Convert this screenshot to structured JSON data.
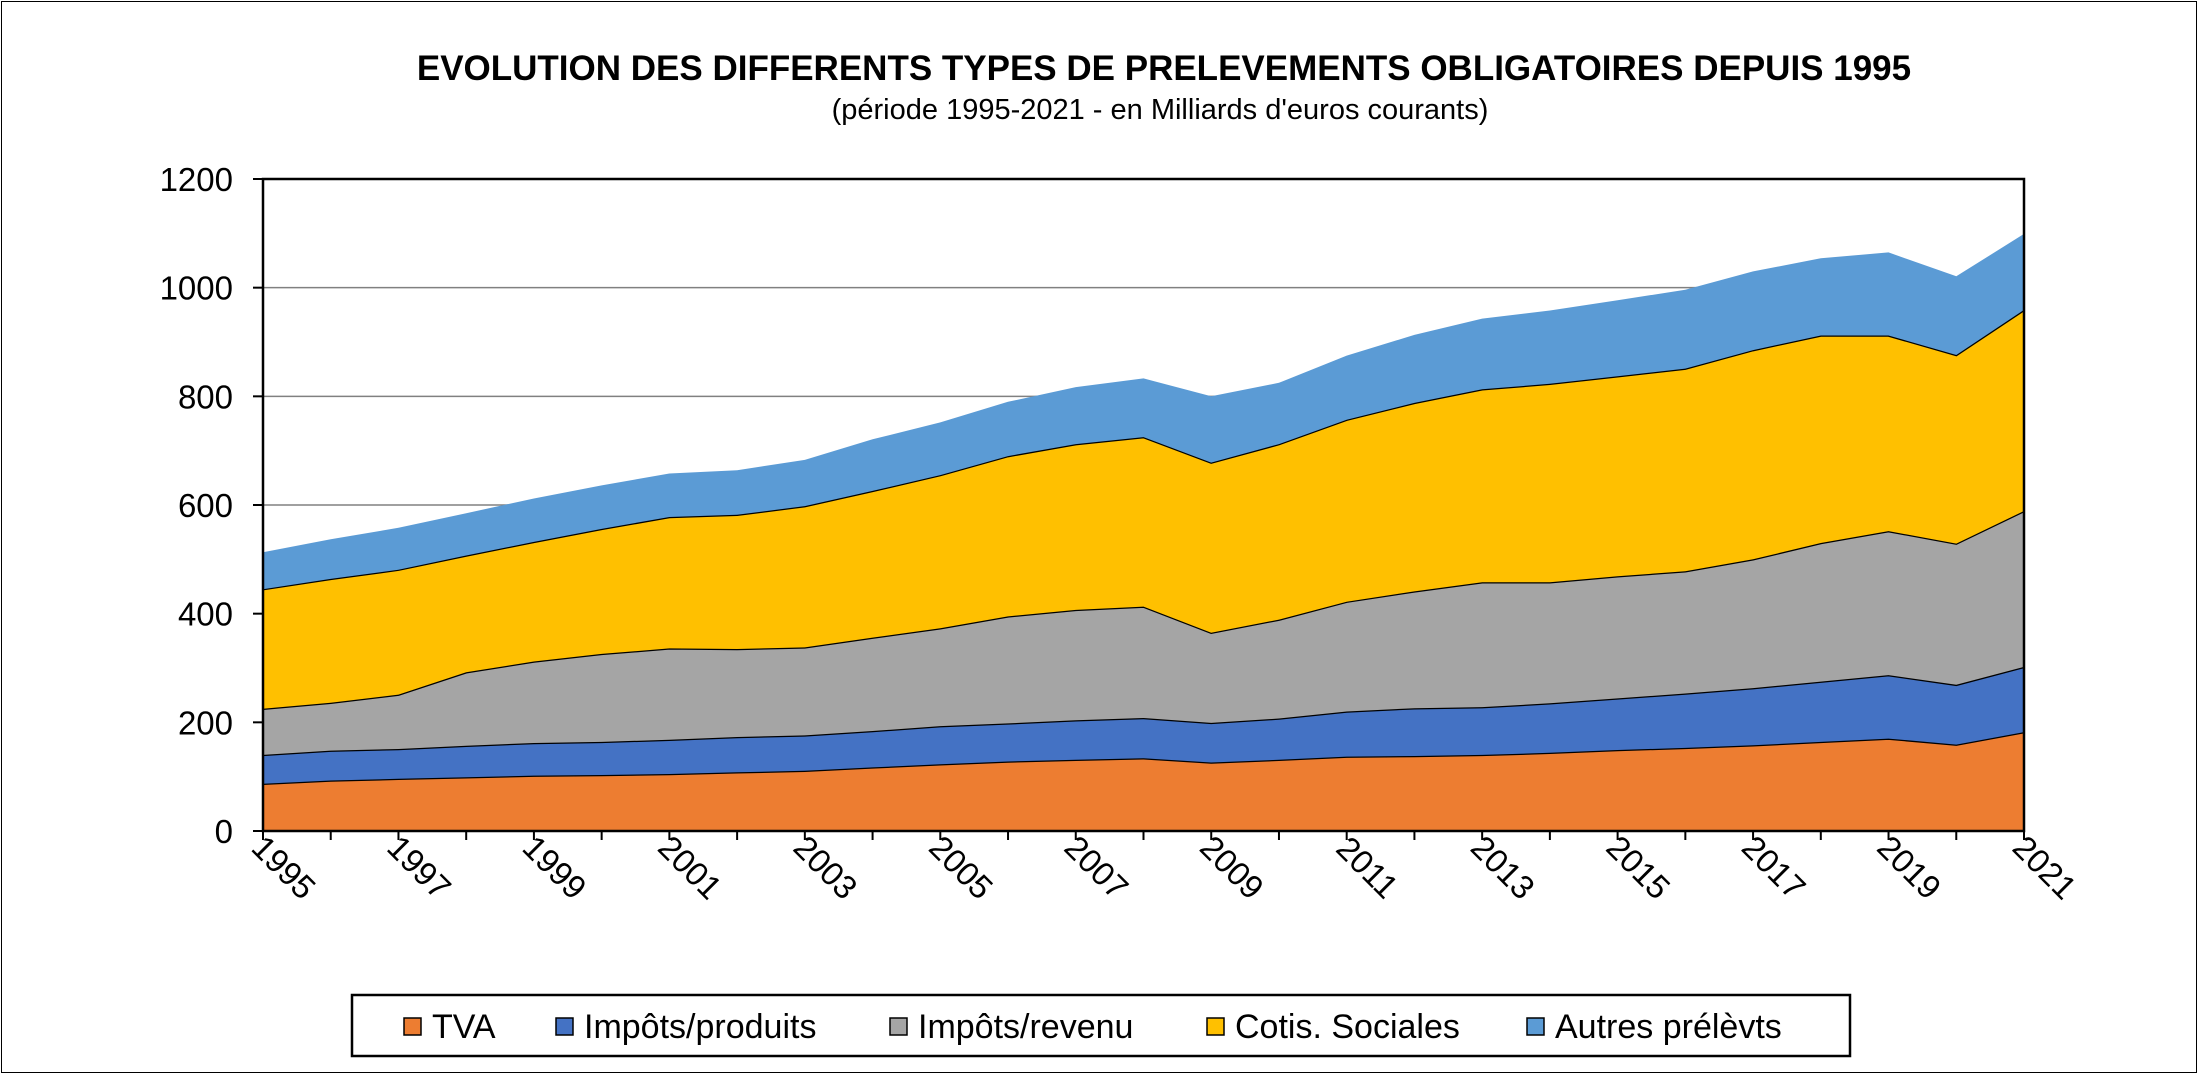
{
  "chart_data": {
    "type": "area",
    "stacked": true,
    "title": "EVOLUTION DES DIFFERENTS TYPES DE PRELEVEMENTS OBLIGATOIRES DEPUIS 1995",
    "subtitle": "(période 1995-2021 - en Milliards d'euros courants)",
    "xlabel": "",
    "ylabel": "",
    "ylim": [
      0,
      1200
    ],
    "yticks": [
      0,
      200,
      400,
      600,
      800,
      1000,
      1200
    ],
    "xticks": [
      "1995",
      "1997",
      "1999",
      "2001",
      "2003",
      "2005",
      "2007",
      "2009",
      "2011",
      "2013",
      "2015",
      "2017",
      "2019",
      "2021"
    ],
    "grid": true,
    "legend_position": "bottom",
    "x": [
      1995,
      1996,
      1997,
      1998,
      1999,
      2000,
      2001,
      2002,
      2003,
      2004,
      2005,
      2006,
      2007,
      2008,
      2009,
      2010,
      2011,
      2012,
      2013,
      2014,
      2015,
      2016,
      2017,
      2018,
      2019,
      2020,
      2021
    ],
    "series": [
      {
        "name": "TVA",
        "color": "#ed7d31",
        "values": [
          87,
          93,
          96,
          99,
          102,
          103,
          105,
          108,
          111,
          117,
          123,
          128,
          131,
          134,
          126,
          131,
          137,
          138,
          140,
          144,
          149,
          153,
          158,
          164,
          170,
          159,
          182
        ]
      },
      {
        "name": "Impôts/produits",
        "color": "#4472c4",
        "values": [
          53,
          55,
          55,
          58,
          60,
          61,
          63,
          65,
          65,
          67,
          70,
          70,
          73,
          74,
          73,
          76,
          83,
          88,
          88,
          91,
          95,
          100,
          105,
          111,
          117,
          110,
          120
        ]
      },
      {
        "name": "Impôts/revenu",
        "color": "#a5a5a5",
        "values": [
          85,
          88,
          100,
          135,
          150,
          162,
          168,
          162,
          162,
          172,
          180,
          197,
          203,
          205,
          166,
          182,
          202,
          215,
          230,
          223,
          225,
          225,
          237,
          255,
          265,
          260,
          287
        ]
      },
      {
        "name": "Cotis. Sociales",
        "color": "#ffc000",
        "values": [
          220,
          228,
          230,
          215,
          220,
          230,
          242,
          247,
          260,
          270,
          282,
          295,
          305,
          312,
          313,
          323,
          335,
          347,
          355,
          365,
          368,
          373,
          385,
          382,
          360,
          347,
          370
        ]
      },
      {
        "name": "Autres prélèvts",
        "color": "#5b9bd5",
        "values": [
          68,
          73,
          77,
          78,
          80,
          80,
          80,
          82,
          85,
          95,
          97,
          100,
          105,
          108,
          122,
          113,
          118,
          125,
          130,
          135,
          140,
          145,
          145,
          142,
          153,
          145,
          140
        ]
      }
    ]
  }
}
